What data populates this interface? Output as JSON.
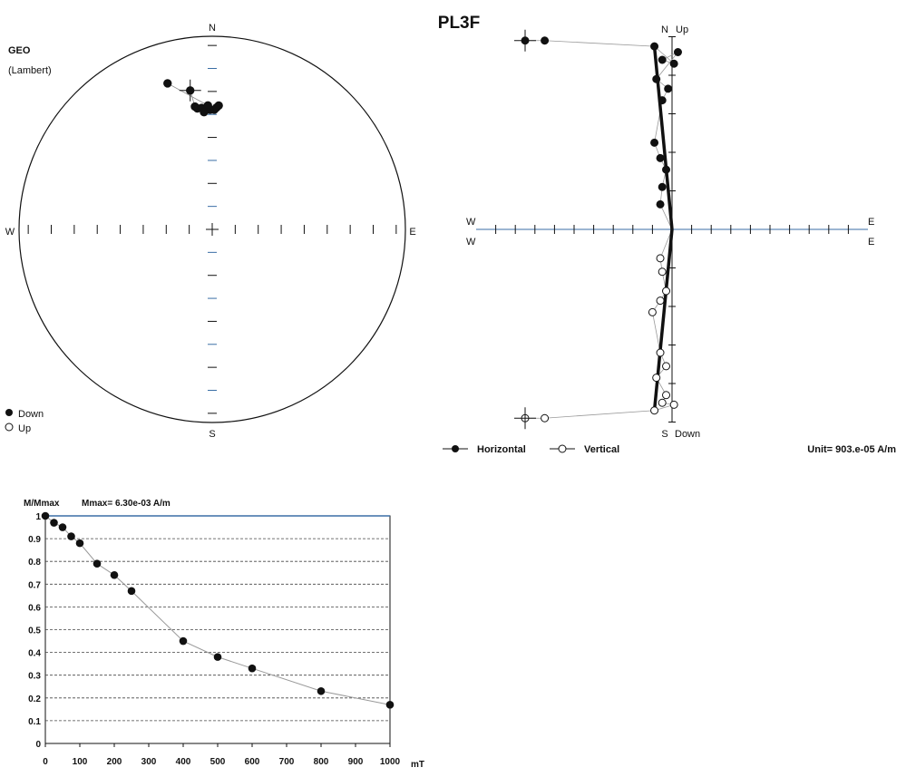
{
  "figure": {
    "title": "PL3F"
  },
  "chart_data": [
    {
      "type": "scatter",
      "name": "equal-area-stereonet",
      "label": "GEO",
      "projection": "(Lambert)",
      "cardinals": {
        "n": "N",
        "s": "S",
        "e": "E",
        "w": "W"
      },
      "legend": {
        "down": "Down",
        "up": "Up"
      },
      "legend_position": "bottom-left",
      "points": [
        {
          "dec": 351,
          "inc": 28,
          "down": true
        },
        {
          "dec": 352,
          "inc": 36,
          "down": true
        },
        {
          "dec": 353,
          "inc": 37,
          "down": true
        },
        {
          "dec": 355,
          "inc": 37,
          "down": true
        },
        {
          "dec": 357,
          "inc": 38,
          "down": true
        },
        {
          "dec": 359,
          "inc": 38,
          "down": true
        },
        {
          "dec": 1,
          "inc": 38,
          "down": true
        },
        {
          "dec": 2,
          "inc": 37,
          "down": true
        },
        {
          "dec": 3,
          "inc": 36,
          "down": true
        },
        {
          "dec": 356,
          "inc": 39,
          "down": true
        },
        {
          "dec": 358,
          "inc": 36,
          "down": true
        },
        {
          "dec": 343,
          "inc": 22,
          "down": true
        }
      ]
    },
    {
      "type": "line",
      "name": "zijderveld-diagram",
      "labels": {
        "north": "N",
        "up": "Up",
        "south": "S",
        "down": "Down",
        "west_h": "W",
        "west_v": "W",
        "east_h": "E",
        "east_v": "E"
      },
      "legend": {
        "horizontal": "Horizontal",
        "vertical": "Vertical"
      },
      "legend_position": "bottom",
      "unit_label": "Unit=  903.e-05 A/m",
      "series": [
        {
          "name": "Horizontal",
          "points": [
            [
              -7.5,
              4.9
            ],
            [
              -6.5,
              4.9
            ],
            [
              -0.9,
              4.75
            ],
            [
              0.1,
              4.3
            ],
            [
              -0.5,
              4.4
            ],
            [
              0.3,
              4.6
            ],
            [
              -0.8,
              3.9
            ],
            [
              -0.2,
              3.65
            ],
            [
              -0.5,
              3.35
            ],
            [
              -0.9,
              2.25
            ],
            [
              -0.6,
              1.85
            ],
            [
              -0.3,
              1.55
            ],
            [
              -0.5,
              1.1
            ],
            [
              -0.6,
              0.65
            ],
            [
              0,
              0
            ]
          ]
        },
        {
          "name": "Vertical",
          "points": [
            [
              -7.5,
              -4.9
            ],
            [
              -6.5,
              -4.9
            ],
            [
              -0.9,
              -4.7
            ],
            [
              0.1,
              -4.55
            ],
            [
              -0.5,
              -4.5
            ],
            [
              -0.3,
              -4.3
            ],
            [
              -0.8,
              -3.85
            ],
            [
              -0.3,
              -3.55
            ],
            [
              -0.6,
              -3.2
            ],
            [
              -1.0,
              -2.15
            ],
            [
              -0.6,
              -1.85
            ],
            [
              -0.3,
              -1.6
            ],
            [
              -0.5,
              -1.1
            ],
            [
              -0.6,
              -0.75
            ],
            [
              0,
              0
            ]
          ]
        }
      ],
      "x_tick_step": 1,
      "xlim": [
        -10,
        10
      ],
      "ylim": [
        -5,
        5
      ]
    },
    {
      "type": "line",
      "name": "demagnetization-curve",
      "ylabel": "M/Mmax",
      "annotation": "Mmax= 6.30e-03  A/m",
      "xlabel": "mT",
      "x": [
        0,
        25,
        50,
        75,
        100,
        150,
        200,
        250,
        400,
        500,
        600,
        800,
        1000
      ],
      "y": [
        1.0,
        0.97,
        0.95,
        0.91,
        0.88,
        0.79,
        0.74,
        0.67,
        0.45,
        0.38,
        0.33,
        0.23,
        0.17
      ],
      "xlim": [
        0,
        1000
      ],
      "ylim": [
        0,
        1
      ],
      "xticks": [
        "0",
        "100",
        "200",
        "300",
        "400",
        "500",
        "600",
        "700",
        "800",
        "900",
        "1000"
      ],
      "yticks": [
        "0",
        "0.1",
        "0.2",
        "0.3",
        "0.4",
        "0.5",
        "0.6",
        "0.7",
        "0.8",
        "0.9",
        "1"
      ],
      "grid": true,
      "colors": {
        "line": "#999999",
        "marker": "#111111",
        "top_line": "#3a6ea5"
      }
    }
  ]
}
